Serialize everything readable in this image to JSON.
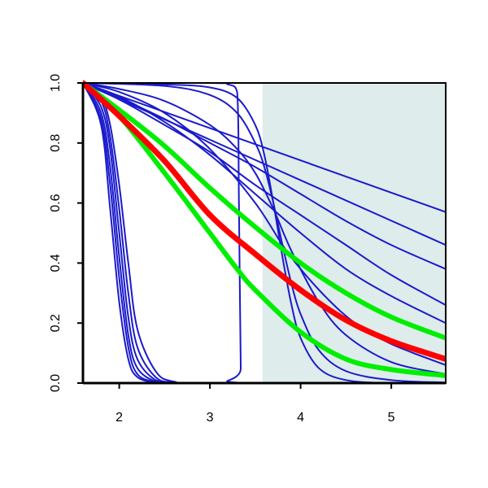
{
  "chart_data": {
    "type": "line",
    "title": "",
    "xlabel": "",
    "ylabel": "",
    "xlim": [
      1.6,
      5.6
    ],
    "ylim": [
      0,
      1
    ],
    "x_ticks": [
      2,
      3,
      4,
      5
    ],
    "y_ticks": [
      0.0,
      0.2,
      0.4,
      0.6,
      0.8,
      1.0
    ],
    "x_tick_labels": [
      "2",
      "3",
      "4",
      "5"
    ],
    "y_tick_labels": [
      "0.0",
      "0.2",
      "0.4",
      "0.6",
      "0.8",
      "1.0"
    ],
    "grid": false,
    "shaded_region": {
      "x_from": 3.58,
      "x_to": 5.6,
      "color": "#deeceb"
    },
    "colors": {
      "blue": "#1a1acc",
      "red": "#ff0000",
      "green": "#00ee00"
    },
    "series": [
      {
        "x": [
          1.6,
          1.8,
          1.9,
          2.0,
          2.1,
          2.2,
          2.4,
          2.6,
          3.0,
          5.6
        ],
        "values": [
          1.0,
          0.86,
          0.58,
          0.27,
          0.08,
          0.02,
          0.002,
          0.0,
          0.0,
          0.0
        ],
        "color": "blue",
        "width": 2
      },
      {
        "x": [
          1.6,
          1.8,
          1.9,
          2.0,
          2.1,
          2.2,
          2.4,
          2.6,
          3.0,
          5.6
        ],
        "values": [
          1.0,
          0.88,
          0.66,
          0.35,
          0.12,
          0.03,
          0.003,
          0.0,
          0.0,
          0.0
        ],
        "color": "blue",
        "width": 2
      },
      {
        "x": [
          1.6,
          1.8,
          1.9,
          2.0,
          2.1,
          2.2,
          2.4,
          2.6,
          3.0,
          5.6
        ],
        "values": [
          1.0,
          0.9,
          0.72,
          0.42,
          0.16,
          0.05,
          0.005,
          0.0,
          0.0,
          0.0
        ],
        "color": "blue",
        "width": 2
      },
      {
        "x": [
          1.6,
          1.8,
          1.9,
          2.0,
          2.1,
          2.2,
          2.4,
          2.6,
          3.0,
          5.6
        ],
        "values": [
          1.0,
          0.92,
          0.78,
          0.5,
          0.22,
          0.08,
          0.01,
          0.001,
          0.0,
          0.0
        ],
        "color": "blue",
        "width": 2
      },
      {
        "x": [
          1.6,
          1.8,
          1.9,
          2.0,
          2.1,
          2.2,
          2.4,
          2.6,
          3.0,
          5.6
        ],
        "values": [
          1.0,
          0.94,
          0.82,
          0.58,
          0.3,
          0.12,
          0.02,
          0.002,
          0.0,
          0.0
        ],
        "color": "blue",
        "width": 2
      },
      {
        "x": [
          1.6,
          1.8,
          1.9,
          2.0,
          2.1,
          2.2,
          2.4,
          2.6,
          3.0,
          5.6
        ],
        "values": [
          1.0,
          0.95,
          0.86,
          0.66,
          0.4,
          0.18,
          0.04,
          0.005,
          0.0,
          0.0
        ],
        "color": "blue",
        "width": 2
      },
      {
        "x": [
          1.6,
          3.0,
          3.2,
          3.3,
          3.32,
          3.34,
          3.36,
          5.6
        ],
        "values": [
          1.0,
          1.0,
          0.995,
          0.97,
          0.6,
          0.05,
          0.0,
          0.0
        ],
        "color": "blue",
        "width": 2
      },
      {
        "x": [
          1.6,
          2.5,
          3.0,
          3.3,
          3.5,
          3.6,
          3.7,
          3.8,
          3.9,
          4.0,
          4.2,
          4.5,
          5.0,
          5.6
        ],
        "values": [
          1.0,
          0.995,
          0.985,
          0.95,
          0.86,
          0.76,
          0.6,
          0.42,
          0.26,
          0.15,
          0.05,
          0.01,
          0.0,
          0.0
        ],
        "color": "blue",
        "width": 2
      },
      {
        "x": [
          1.6,
          2.5,
          3.0,
          3.3,
          3.5,
          3.6,
          3.7,
          3.8,
          3.9,
          4.0,
          4.2,
          4.5,
          5.0,
          5.6
        ],
        "values": [
          1.0,
          0.99,
          0.96,
          0.9,
          0.8,
          0.72,
          0.6,
          0.46,
          0.33,
          0.23,
          0.11,
          0.04,
          0.01,
          0.002
        ],
        "color": "blue",
        "width": 2
      },
      {
        "x": [
          1.6,
          2.0,
          2.5,
          3.0,
          3.3,
          3.5,
          3.7,
          3.9,
          4.2,
          4.5,
          5.0,
          5.6
        ],
        "values": [
          1.0,
          0.98,
          0.94,
          0.86,
          0.78,
          0.7,
          0.58,
          0.44,
          0.27,
          0.16,
          0.07,
          0.03
        ],
        "color": "blue",
        "width": 2
      },
      {
        "x": [
          1.6,
          2.0,
          2.5,
          3.0,
          3.5,
          3.8,
          4.0,
          4.3,
          4.6,
          5.0,
          5.6
        ],
        "values": [
          1.0,
          0.97,
          0.9,
          0.78,
          0.6,
          0.46,
          0.38,
          0.28,
          0.2,
          0.13,
          0.06
        ],
        "color": "blue",
        "width": 2
      },
      {
        "x": [
          1.6,
          2.0,
          2.5,
          3.0,
          3.5,
          4.0,
          4.5,
          5.0,
          5.6
        ],
        "values": [
          1.0,
          0.955,
          0.87,
          0.76,
          0.63,
          0.5,
          0.38,
          0.29,
          0.2
        ],
        "color": "blue",
        "width": 2
      },
      {
        "x": [
          1.6,
          2.0,
          2.5,
          3.0,
          3.5,
          4.0,
          4.5,
          5.0,
          5.6
        ],
        "values": [
          1.0,
          0.945,
          0.86,
          0.77,
          0.66,
          0.56,
          0.46,
          0.36,
          0.26
        ],
        "color": "blue",
        "width": 2
      },
      {
        "x": [
          1.6,
          2.0,
          2.5,
          3.0,
          3.5,
          4.0,
          4.5,
          5.0,
          5.6
        ],
        "values": [
          1.0,
          0.95,
          0.88,
          0.8,
          0.72,
          0.63,
          0.54,
          0.46,
          0.38
        ],
        "color": "blue",
        "width": 2
      },
      {
        "x": [
          1.6,
          5.6
        ],
        "values": [
          1.0,
          0.46
        ],
        "color": "blue",
        "width": 2
      },
      {
        "x": [
          1.6,
          5.6
        ],
        "values": [
          1.0,
          0.57
        ],
        "color": "blue",
        "width": 2
      },
      {
        "x": [
          1.6,
          2.0,
          2.5,
          3.0,
          3.5,
          4.0,
          4.5,
          5.0,
          5.6
        ],
        "values": [
          1.0,
          0.91,
          0.79,
          0.65,
          0.52,
          0.4,
          0.3,
          0.22,
          0.15
        ],
        "color": "green",
        "width": 6
      },
      {
        "x": [
          1.6,
          2.0,
          2.5,
          3.0,
          3.3,
          3.5,
          4.0,
          4.5,
          5.0,
          5.6
        ],
        "values": [
          1.0,
          0.89,
          0.7,
          0.5,
          0.38,
          0.31,
          0.17,
          0.08,
          0.045,
          0.025
        ],
        "color": "green",
        "width": 6
      },
      {
        "x": [
          1.6,
          2.0,
          2.5,
          3.0,
          3.5,
          4.0,
          4.5,
          5.0,
          5.6
        ],
        "values": [
          1.0,
          0.89,
          0.74,
          0.56,
          0.43,
          0.31,
          0.21,
          0.14,
          0.08
        ],
        "color": "red",
        "width": 7
      }
    ]
  }
}
